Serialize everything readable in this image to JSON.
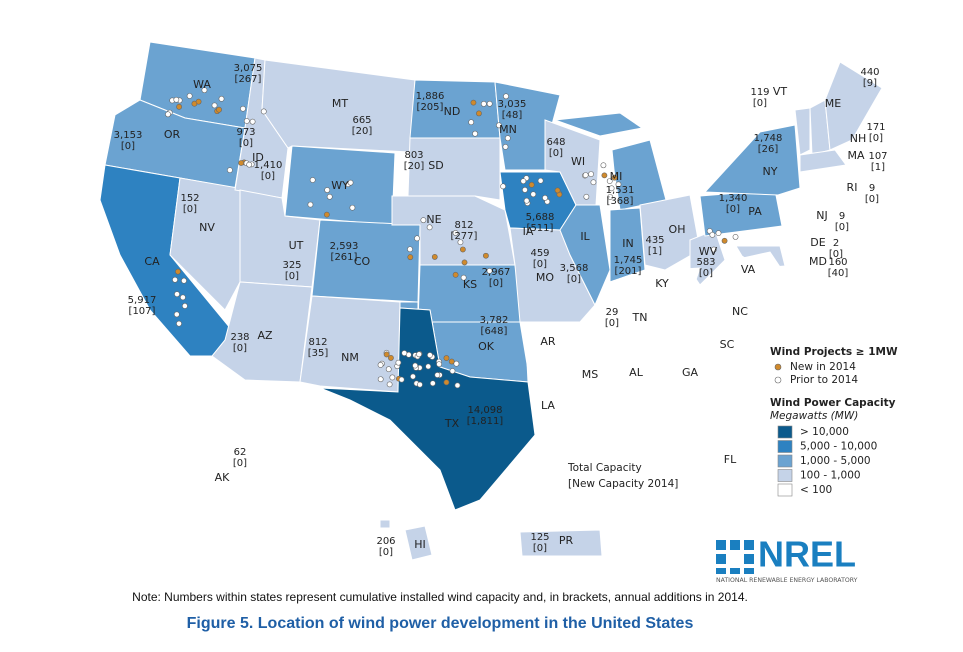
{
  "map": {
    "states": [
      {
        "abbr": "WA",
        "capacity": "3,075",
        "new": "[267]",
        "color": "#6ba3d1"
      },
      {
        "abbr": "OR",
        "capacity": "3,153",
        "new": "[0]",
        "color": "#6ba3d1"
      },
      {
        "abbr": "CA",
        "capacity": "5,917",
        "new": "[107]",
        "color": "#2e82c1"
      },
      {
        "abbr": "NV",
        "capacity": "152",
        "new": "[0]",
        "color": "#c5d3e8"
      },
      {
        "abbr": "ID",
        "capacity": "973",
        "new": "[0]",
        "color": "#c5d3e8"
      },
      {
        "abbr": "MT",
        "capacity": "665",
        "new": "[20]",
        "color": "#c5d3e8"
      },
      {
        "abbr": "WY",
        "capacity": "1,410",
        "new": "[0]",
        "color": "#6ba3d1"
      },
      {
        "abbr": "UT",
        "capacity": "325",
        "new": "[0]",
        "color": "#c5d3e8"
      },
      {
        "abbr": "AZ",
        "capacity": "238",
        "new": "[0]",
        "color": "#c5d3e8"
      },
      {
        "abbr": "CO",
        "capacity": "2,593",
        "new": "[261]",
        "color": "#6ba3d1"
      },
      {
        "abbr": "NM",
        "capacity": "812",
        "new": "[35]",
        "color": "#c5d3e8"
      },
      {
        "abbr": "ND",
        "capacity": "1,886",
        "new": "[205]",
        "color": "#6ba3d1"
      },
      {
        "abbr": "SD",
        "capacity": "803",
        "new": "[20]",
        "color": "#c5d3e8"
      },
      {
        "abbr": "NE",
        "capacity": "812",
        "new": "[277]",
        "color": "#c5d3e8"
      },
      {
        "abbr": "KS",
        "capacity": "2,967",
        "new": "[0]",
        "color": "#6ba3d1"
      },
      {
        "abbr": "OK",
        "capacity": "3,782",
        "new": "[648]",
        "color": "#6ba3d1"
      },
      {
        "abbr": "TX",
        "capacity": "14,098",
        "new": "[1,811]",
        "color": "#0b5a8c"
      },
      {
        "abbr": "MN",
        "capacity": "3,035",
        "new": "[48]",
        "color": "#6ba3d1"
      },
      {
        "abbr": "IA",
        "capacity": "5,688",
        "new": "[511]",
        "color": "#2e82c1"
      },
      {
        "abbr": "MO",
        "capacity": "459",
        "new": "[0]",
        "color": "#c5d3e8"
      },
      {
        "abbr": "WI",
        "capacity": "648",
        "new": "[0]",
        "color": "#c5d3e8"
      },
      {
        "abbr": "IL",
        "capacity": "3,568",
        "new": "[0]",
        "color": "#6ba3d1"
      },
      {
        "abbr": "MI",
        "capacity": "1,531",
        "new": "[368]",
        "color": "#6ba3d1"
      },
      {
        "abbr": "IN",
        "capacity": "1,745",
        "new": "[201]",
        "color": "#6ba3d1"
      },
      {
        "abbr": "OH",
        "capacity": "435",
        "new": "[1]",
        "color": "#c5d3e8"
      },
      {
        "abbr": "TN",
        "capacity": "29",
        "new": "[0]",
        "color": "#ffffff"
      },
      {
        "abbr": "WV",
        "capacity": "583",
        "new": "[0]",
        "color": "#c5d3e8"
      },
      {
        "abbr": "PA",
        "capacity": "1,340",
        "new": "[0]",
        "color": "#6ba3d1"
      },
      {
        "abbr": "NY",
        "capacity": "1,748",
        "new": "[26]",
        "color": "#6ba3d1"
      },
      {
        "abbr": "VT",
        "capacity": "119",
        "new": "[0]",
        "color": "#c5d3e8"
      },
      {
        "abbr": "NH",
        "capacity": "171",
        "new": "[0]",
        "color": "#c5d3e8"
      },
      {
        "abbr": "ME",
        "capacity": "440",
        "new": "[9]",
        "color": "#c5d3e8"
      },
      {
        "abbr": "MA",
        "capacity": "107",
        "new": "[1]",
        "color": "#c5d3e8"
      },
      {
        "abbr": "RI",
        "capacity": "9",
        "new": "[0]",
        "color": "#ffffff"
      },
      {
        "abbr": "NJ",
        "capacity": "9",
        "new": "[0]",
        "color": "#ffffff"
      },
      {
        "abbr": "DE",
        "capacity": "2",
        "new": "[0]",
        "color": "#ffffff"
      },
      {
        "abbr": "MD",
        "capacity": "160",
        "new": "[40]",
        "color": "#c5d3e8"
      },
      {
        "abbr": "AK",
        "capacity": "62",
        "new": "[0]",
        "color": "#ffffff"
      },
      {
        "abbr": "HI",
        "capacity": "206",
        "new": "[0]",
        "color": "#c5d3e8"
      },
      {
        "abbr": "PR",
        "capacity": "125",
        "new": "[0]",
        "color": "#c5d3e8"
      },
      {
        "abbr": "KY",
        "color": "#ffffff"
      },
      {
        "abbr": "VA",
        "color": "#ffffff"
      },
      {
        "abbr": "AR",
        "color": "#ffffff"
      },
      {
        "abbr": "MS",
        "color": "#ffffff"
      },
      {
        "abbr": "AL",
        "color": "#ffffff"
      },
      {
        "abbr": "GA",
        "color": "#ffffff"
      },
      {
        "abbr": "LA",
        "color": "#ffffff"
      },
      {
        "abbr": "FL",
        "color": "#ffffff"
      },
      {
        "abbr": "SC",
        "color": "#ffffff"
      },
      {
        "abbr": "NC",
        "color": "#ffffff"
      }
    ],
    "legend": {
      "projects_title": "Wind Projects ≥ 1MW",
      "projects": [
        {
          "label": "New in 2014",
          "color": "#d08a2c"
        },
        {
          "label": "Prior to 2014",
          "color": "#ffffff"
        }
      ],
      "capacity_title": "Wind Power Capacity",
      "capacity_unit": "Megawatts (MW)",
      "classes": [
        {
          "label": "> 10,000",
          "color": "#0b5a8c"
        },
        {
          "label": "5,000 - 10,000",
          "color": "#2e82c1"
        },
        {
          "label": "1,000 - 5,000",
          "color": "#6ba3d1"
        },
        {
          "label": "100 - 1,000",
          "color": "#c5d3e8"
        },
        {
          "label": "< 100",
          "color": "#ffffff"
        }
      ]
    },
    "key_note": [
      "Total Capacity",
      "[New Capacity 2014]"
    ],
    "logo": {
      "name": "NREL",
      "subtitle": "NATIONAL RENEWABLE ENERGY LABORATORY"
    },
    "note": "Note: Numbers within states represent cumulative installed wind capacity and, in brackets, annual additions in 2014.",
    "caption": "Figure 5. Location of wind power development in the United States"
  }
}
